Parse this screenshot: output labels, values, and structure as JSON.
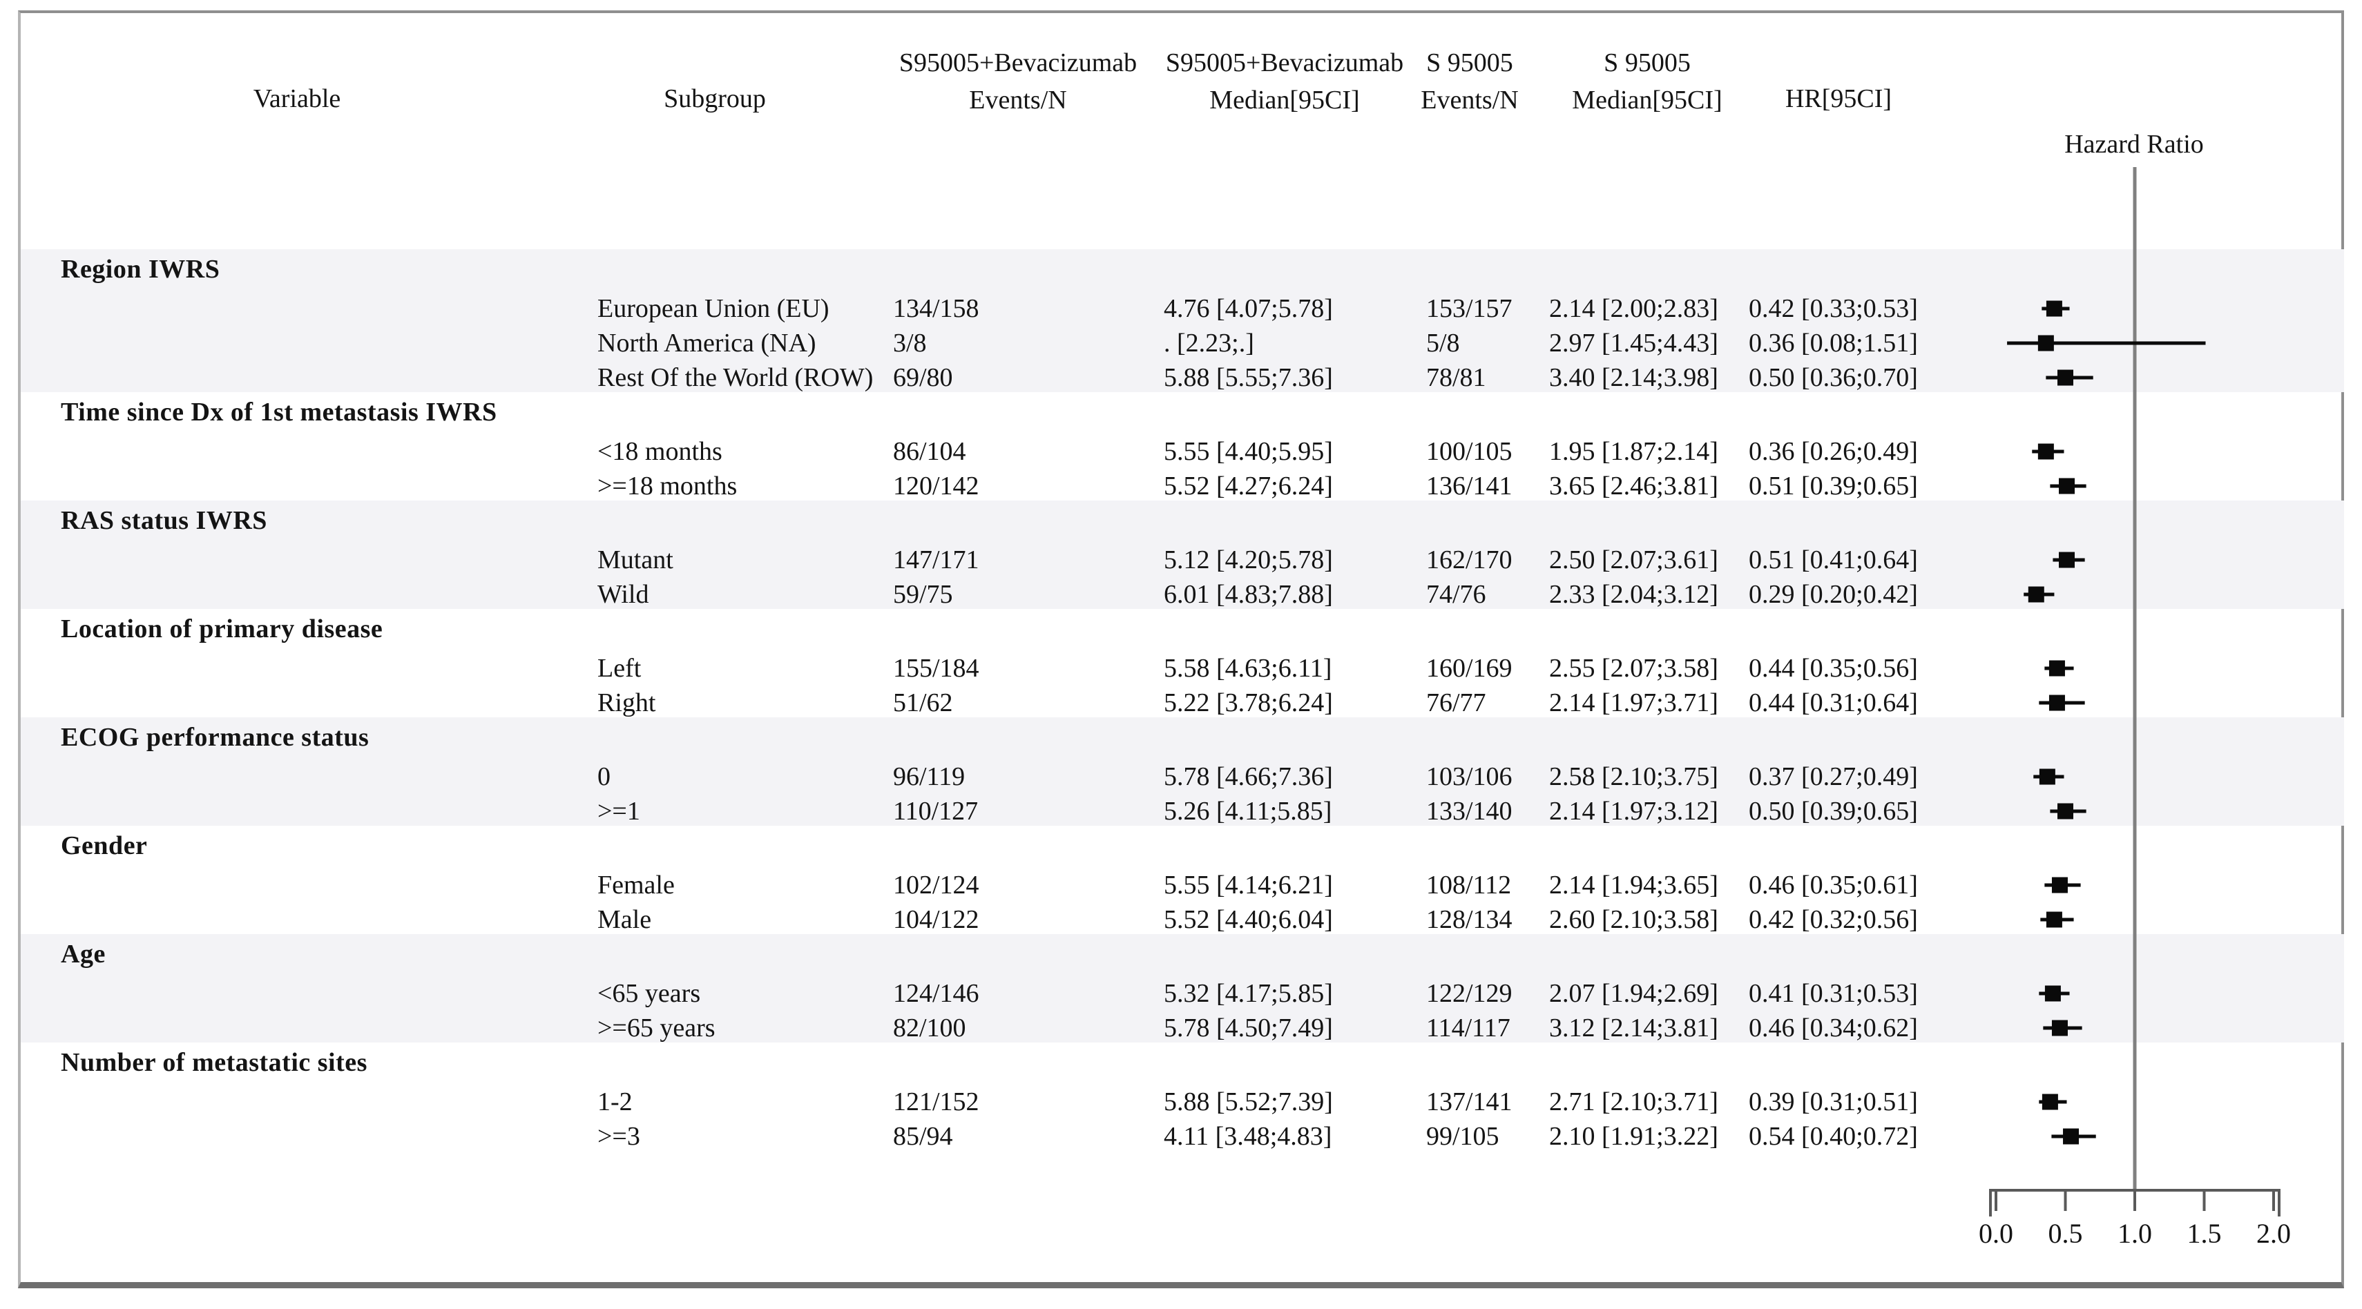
{
  "page": {
    "background": "#ffffff"
  },
  "headers": {
    "variable": "Variable",
    "subgroup": "Subgroup",
    "trt_events_line1": "S95005+Bevacizumab",
    "trt_events_line2": "Events/N",
    "trt_median_line1": "S95005+Bevacizumab",
    "trt_median_line2": "Median[95CI]",
    "ctl_events_line1": "S 95005",
    "ctl_events_line2": "Events/N",
    "ctl_median_line1": "S 95005",
    "ctl_median_line2": "Median[95CI]",
    "hr": "HR[95CI]",
    "plot_title": "Hazard Ratio"
  },
  "colors": {
    "band": "#f3f3f6",
    "text": "#141414",
    "reference_line": "#808080",
    "axis": "#5a5a5a",
    "marker": "#0a0a0a",
    "frame": "#8f8f8f"
  },
  "chart_data": {
    "type": "scatter",
    "variant": "forest-plot",
    "title": "Hazard Ratio",
    "xlabel": "",
    "ylabel": "",
    "x_axis": {
      "range": [
        0.0,
        2.0
      ],
      "ticks": [
        0.0,
        0.5,
        1.0,
        1.5,
        2.0
      ],
      "tick_labels": [
        "0.0",
        "0.5",
        "1.0",
        "1.5",
        "2.0"
      ],
      "reference_line": 1.0,
      "position": "bottom-right"
    },
    "legend": "none",
    "grid": false,
    "groups": [
      {
        "variable": "Region IWRS",
        "shaded": true,
        "rows": [
          {
            "subgroup": "European Union (EU)",
            "trt_events_n": "134/158",
            "trt_median": "4.76 [4.07;5.78]",
            "ctl_events_n": "153/157",
            "ctl_median": "2.14 [2.00;2.83]",
            "hr_label": "0.42 [0.33;0.53]",
            "hr": 0.42,
            "ci_low": 0.33,
            "ci_high": 0.53
          },
          {
            "subgroup": "North America (NA)",
            "trt_events_n": "3/8",
            "trt_median": ". [2.23;.]",
            "ctl_events_n": "5/8",
            "ctl_median": "2.97 [1.45;4.43]",
            "hr_label": "0.36 [0.08;1.51]",
            "hr": 0.36,
            "ci_low": 0.08,
            "ci_high": 1.51
          },
          {
            "subgroup": "Rest Of the World (ROW)",
            "trt_events_n": "69/80",
            "trt_median": "5.88 [5.55;7.36]",
            "ctl_events_n": "78/81",
            "ctl_median": "3.40 [2.14;3.98]",
            "hr_label": "0.50 [0.36;0.70]",
            "hr": 0.5,
            "ci_low": 0.36,
            "ci_high": 0.7
          }
        ]
      },
      {
        "variable": "Time since Dx of 1st metastasis IWRS",
        "shaded": false,
        "rows": [
          {
            "subgroup": "<18 months",
            "trt_events_n": "86/104",
            "trt_median": "5.55 [4.40;5.95]",
            "ctl_events_n": "100/105",
            "ctl_median": "1.95 [1.87;2.14]",
            "hr_label": "0.36 [0.26;0.49]",
            "hr": 0.36,
            "ci_low": 0.26,
            "ci_high": 0.49
          },
          {
            "subgroup": ">=18 months",
            "trt_events_n": "120/142",
            "trt_median": "5.52 [4.27;6.24]",
            "ctl_events_n": "136/141",
            "ctl_median": "3.65 [2.46;3.81]",
            "hr_label": "0.51 [0.39;0.65]",
            "hr": 0.51,
            "ci_low": 0.39,
            "ci_high": 0.65
          }
        ]
      },
      {
        "variable": "RAS status IWRS",
        "shaded": true,
        "rows": [
          {
            "subgroup": "Mutant",
            "trt_events_n": "147/171",
            "trt_median": "5.12 [4.20;5.78]",
            "ctl_events_n": "162/170",
            "ctl_median": "2.50 [2.07;3.61]",
            "hr_label": "0.51 [0.41;0.64]",
            "hr": 0.51,
            "ci_low": 0.41,
            "ci_high": 0.64
          },
          {
            "subgroup": "Wild",
            "trt_events_n": "59/75",
            "trt_median": "6.01 [4.83;7.88]",
            "ctl_events_n": "74/76",
            "ctl_median": "2.33 [2.04;3.12]",
            "hr_label": "0.29 [0.20;0.42]",
            "hr": 0.29,
            "ci_low": 0.2,
            "ci_high": 0.42
          }
        ]
      },
      {
        "variable": "Location of primary disease",
        "shaded": false,
        "rows": [
          {
            "subgroup": "Left",
            "trt_events_n": "155/184",
            "trt_median": "5.58 [4.63;6.11]",
            "ctl_events_n": "160/169",
            "ctl_median": "2.55 [2.07;3.58]",
            "hr_label": "0.44 [0.35;0.56]",
            "hr": 0.44,
            "ci_low": 0.35,
            "ci_high": 0.56
          },
          {
            "subgroup": "Right",
            "trt_events_n": "51/62",
            "trt_median": "5.22 [3.78;6.24]",
            "ctl_events_n": "76/77",
            "ctl_median": "2.14 [1.97;3.71]",
            "hr_label": "0.44 [0.31;0.64]",
            "hr": 0.44,
            "ci_low": 0.31,
            "ci_high": 0.64
          }
        ]
      },
      {
        "variable": "ECOG performance status",
        "shaded": true,
        "rows": [
          {
            "subgroup": "0",
            "trt_events_n": "96/119",
            "trt_median": "5.78 [4.66;7.36]",
            "ctl_events_n": "103/106",
            "ctl_median": "2.58 [2.10;3.75]",
            "hr_label": "0.37 [0.27;0.49]",
            "hr": 0.37,
            "ci_low": 0.27,
            "ci_high": 0.49
          },
          {
            "subgroup": ">=1",
            "trt_events_n": "110/127",
            "trt_median": "5.26 [4.11;5.85]",
            "ctl_events_n": "133/140",
            "ctl_median": "2.14 [1.97;3.12]",
            "hr_label": "0.50 [0.39;0.65]",
            "hr": 0.5,
            "ci_low": 0.39,
            "ci_high": 0.65
          }
        ]
      },
      {
        "variable": "Gender",
        "shaded": false,
        "rows": [
          {
            "subgroup": "Female",
            "trt_events_n": "102/124",
            "trt_median": "5.55 [4.14;6.21]",
            "ctl_events_n": "108/112",
            "ctl_median": "2.14 [1.94;3.65]",
            "hr_label": "0.46 [0.35;0.61]",
            "hr": 0.46,
            "ci_low": 0.35,
            "ci_high": 0.61
          },
          {
            "subgroup": "Male",
            "trt_events_n": "104/122",
            "trt_median": "5.52 [4.40;6.04]",
            "ctl_events_n": "128/134",
            "ctl_median": "2.60 [2.10;3.58]",
            "hr_label": "0.42 [0.32;0.56]",
            "hr": 0.42,
            "ci_low": 0.32,
            "ci_high": 0.56
          }
        ]
      },
      {
        "variable": "Age",
        "shaded": true,
        "rows": [
          {
            "subgroup": "<65 years",
            "trt_events_n": "124/146",
            "trt_median": "5.32 [4.17;5.85]",
            "ctl_events_n": "122/129",
            "ctl_median": "2.07 [1.94;2.69]",
            "hr_label": "0.41 [0.31;0.53]",
            "hr": 0.41,
            "ci_low": 0.31,
            "ci_high": 0.53
          },
          {
            "subgroup": ">=65 years",
            "trt_events_n": "82/100",
            "trt_median": "5.78 [4.50;7.49]",
            "ctl_events_n": "114/117",
            "ctl_median": "3.12 [2.14;3.81]",
            "hr_label": "0.46 [0.34;0.62]",
            "hr": 0.46,
            "ci_low": 0.34,
            "ci_high": 0.62
          }
        ]
      },
      {
        "variable": "Number of metastatic sites",
        "shaded": false,
        "rows": [
          {
            "subgroup": "1-2",
            "trt_events_n": "121/152",
            "trt_median": "5.88 [5.52;7.39]",
            "ctl_events_n": "137/141",
            "ctl_median": "2.71 [2.10;3.71]",
            "hr_label": "0.39 [0.31;0.51]",
            "hr": 0.39,
            "ci_low": 0.31,
            "ci_high": 0.51
          },
          {
            "subgroup": ">=3",
            "trt_events_n": "85/94",
            "trt_median": "4.11 [3.48;4.83]",
            "ctl_events_n": "99/105",
            "ctl_median": "2.10 [1.91;3.22]",
            "hr_label": "0.54 [0.40;0.72]",
            "hr": 0.54,
            "ci_low": 0.4,
            "ci_high": 0.72
          }
        ]
      }
    ]
  }
}
